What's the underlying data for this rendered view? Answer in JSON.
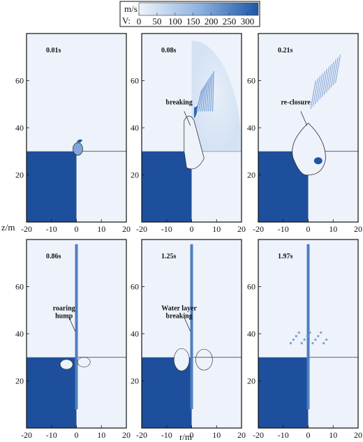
{
  "colorbar": {
    "unit": "m/s",
    "label": "V:",
    "ticks": [
      "0",
      "50",
      "100",
      "150",
      "200",
      "250",
      "300"
    ],
    "range": [
      0,
      330
    ],
    "colors": [
      "#eef3fb",
      "#1e57a6"
    ]
  },
  "axes": {
    "x_label": "r/m",
    "y_label": "z/m",
    "x_ticks": [
      "-20",
      "-10",
      "0",
      "10",
      "20"
    ],
    "y_ticks": [
      "20",
      "40",
      "60"
    ],
    "x_range": [
      -20,
      20
    ],
    "y_range": [
      0,
      80
    ]
  },
  "colors": {
    "water": "#1d4f9c",
    "air": "#edf2fb",
    "velocity_high": "#1e57a6"
  },
  "panels": [
    {
      "time": "0.01s",
      "annotation": ""
    },
    {
      "time": "0.08s",
      "annotation": "breaking"
    },
    {
      "time": "0.21s",
      "annotation": "re-closure"
    },
    {
      "time": "0.86s",
      "annotation": "roaring\nhump"
    },
    {
      "time": "1.25s",
      "annotation": "Water layer\nbreaking"
    },
    {
      "time": "1.97s",
      "annotation": ""
    }
  ]
}
